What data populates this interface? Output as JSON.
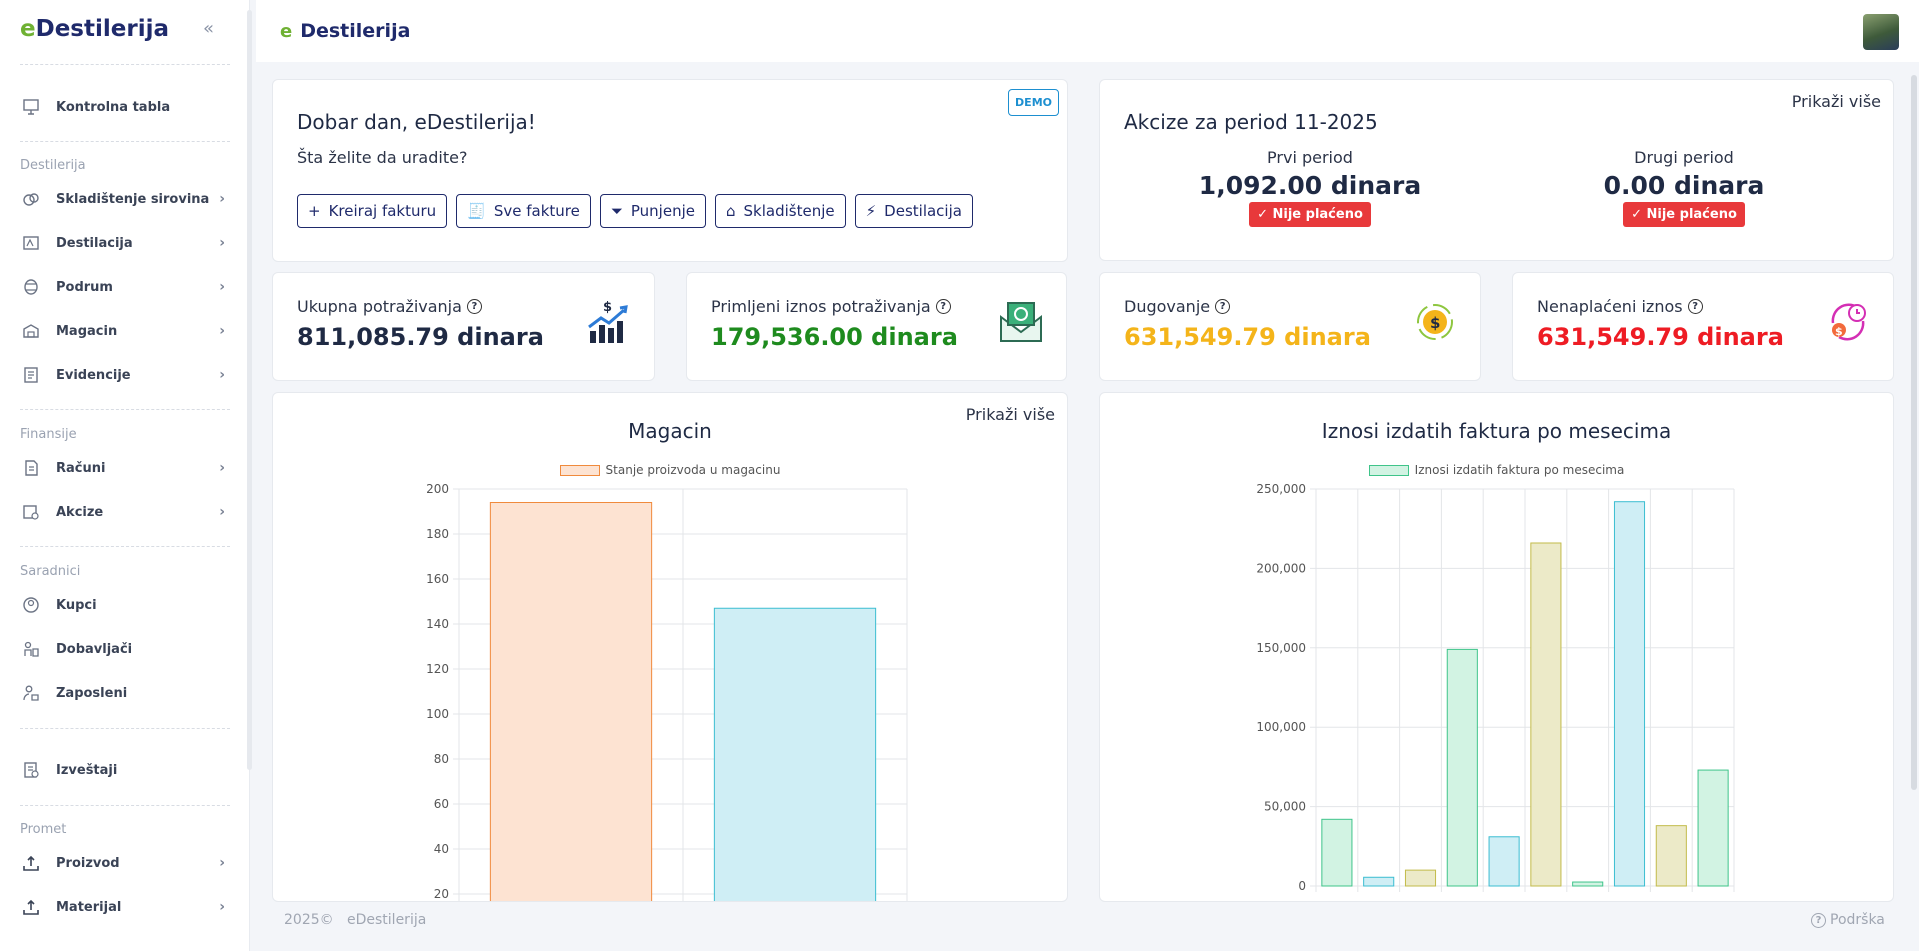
{
  "sidebar": {
    "brand_e": "e",
    "brand_rest": "Destilerija",
    "collapse": "«",
    "items_top": {
      "dashboard": "Kontrolna tabla"
    },
    "sections": {
      "destilerija": "Destilerija",
      "finansije": "Finansije",
      "saradnici": "Saradnici",
      "promet": "Promet"
    },
    "destilerija": [
      "Skladištenje sirovina",
      "Destilacija",
      "Podrum",
      "Magacin",
      "Evidencije"
    ],
    "finansije": [
      "Računi",
      "Akcize"
    ],
    "saradnici": [
      "Kupci",
      "Dobavljači",
      "Zaposleni"
    ],
    "reports": "Izveštaji",
    "promet": [
      "Proizvod",
      "Materijal"
    ]
  },
  "topbar": {
    "title": "Destilerija",
    "logo": "e"
  },
  "welcome": {
    "title": "Dobar dan, eDestilerija!",
    "subtitle": "Šta želite da uradite?",
    "badge": "DEMO",
    "buttons": [
      "Kreiraj fakturu",
      "Sve fakture",
      "Punjenje",
      "Skladištenje",
      "Destilacija"
    ]
  },
  "akcize": {
    "title": "Akcize za period 11-2025",
    "more": "Prikaži više",
    "first": {
      "label": "Prvi period",
      "value": "1,092.00 dinara",
      "status": "Nije plaćeno"
    },
    "second": {
      "label": "Drugi period",
      "value": "0.00 dinara",
      "status": "Nije plaćeno"
    }
  },
  "stats": [
    {
      "label": "Ukupna potraživanja",
      "value": "811,085.79 dinara",
      "color": "#1f2a44"
    },
    {
      "label": "Primljeni iznos potraživanja",
      "value": "179,536.00 dinara",
      "color": "#1e8b1e"
    },
    {
      "label": "Dugovanje",
      "value": "631,549.79 dinara",
      "color": "#f4b41a"
    },
    {
      "label": "Nenaplaćeni iznos",
      "value": "631,549.79 dinara",
      "color": "#ee1c24"
    }
  ],
  "magacin": {
    "title": "Magacin",
    "more": "Prikaži više",
    "chart_data": {
      "type": "bar",
      "title": "Magacin",
      "series": [
        {
          "name": "Stanje proizvoda u magacinu",
          "values": [
            194,
            147
          ]
        }
      ],
      "colors": [
        [
          "#fde3d2",
          "#f08a3c"
        ],
        [
          "#cfeef5",
          "#3bbdd1"
        ]
      ],
      "ylim": [
        0,
        200
      ],
      "yticks": [
        "20",
        "40",
        "60",
        "80",
        "100",
        "120",
        "140",
        "160",
        "180",
        "200"
      ],
      "grid": true,
      "legend": "top"
    }
  },
  "fakture": {
    "title": "Iznosi izdatih faktura po mesecima",
    "chart_data": {
      "type": "bar",
      "title": "Iznosi izdatih faktura po mesecima",
      "series": [
        {
          "name": "Iznosi izdatih faktura po mesecima",
          "values": [
            42000,
            5500,
            10000,
            149000,
            31000,
            216000,
            2500,
            242000,
            38000,
            73000
          ]
        }
      ],
      "colors": [
        [
          "#d2f3e3",
          "#3fc48a"
        ],
        [
          "#cfeef5",
          "#3bbdd1"
        ],
        [
          "#eceac8",
          "#c2bb4a"
        ]
      ],
      "ylim": [
        0,
        250000
      ],
      "yticks": [
        "0",
        "50,000",
        "100,000",
        "150,000",
        "200,000",
        "250,000"
      ],
      "grid": true,
      "legend": "top"
    }
  },
  "footer": {
    "year": "2025©",
    "name": "eDestilerija",
    "support": "Podrška"
  }
}
